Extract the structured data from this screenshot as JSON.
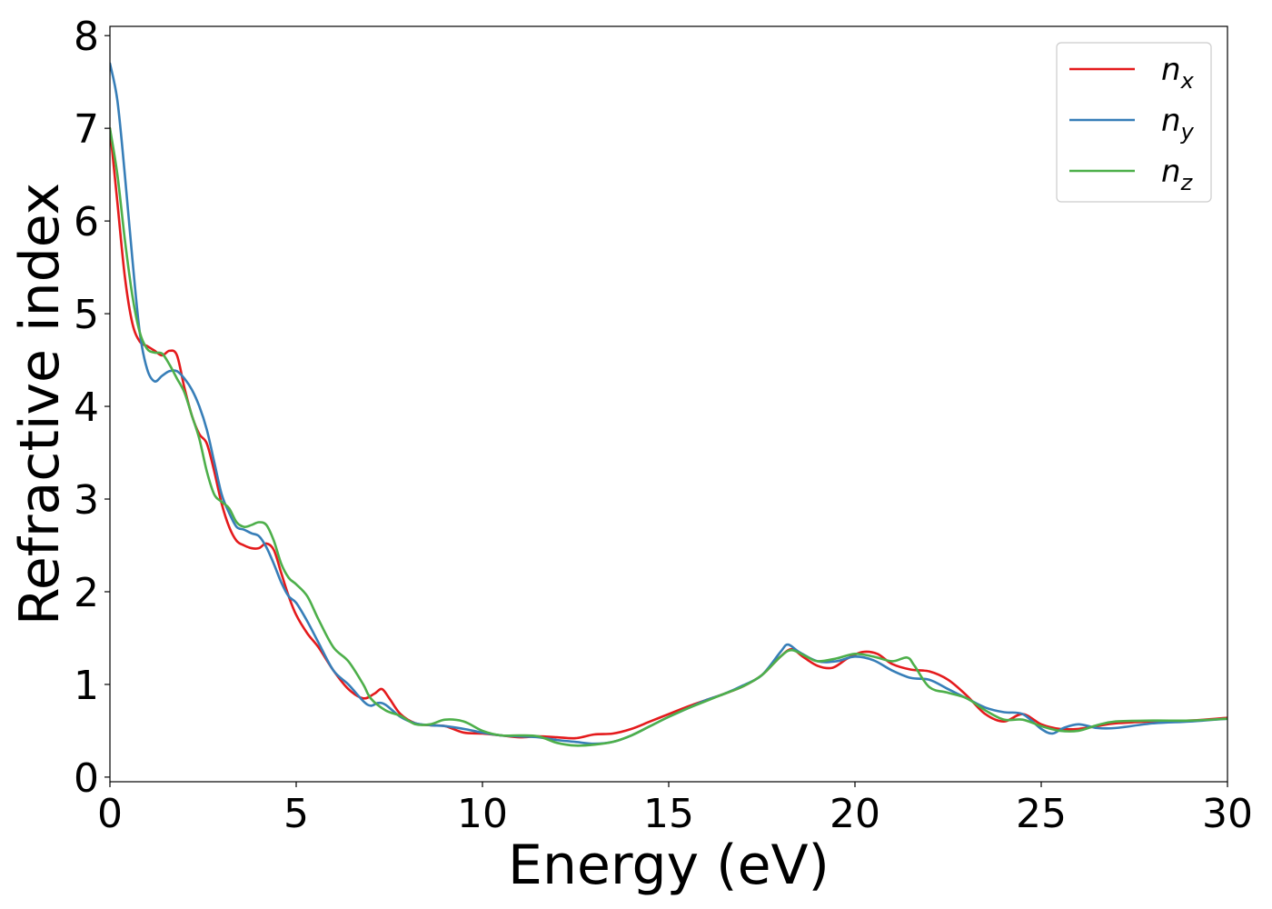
{
  "chart_data": {
    "type": "line",
    "title": "",
    "xlabel": "Energy (eV)",
    "ylabel": "Refractive index",
    "xlim": [
      0,
      30
    ],
    "ylim": [
      -0.05,
      8.1
    ],
    "xticks": [
      "0",
      "5",
      "10",
      "15",
      "20",
      "25",
      "30"
    ],
    "yticks": [
      "0",
      "1",
      "2",
      "3",
      "4",
      "5",
      "6",
      "7",
      "8"
    ],
    "grid": false,
    "legend_position": "top-right",
    "series": [
      {
        "name": "n",
        "subscript": "x",
        "color": "#e41a1c",
        "points": [
          [
            0,
            7.0
          ],
          [
            0.2,
            6.2
          ],
          [
            0.4,
            5.4
          ],
          [
            0.6,
            4.9
          ],
          [
            0.8,
            4.7
          ],
          [
            1.0,
            4.65
          ],
          [
            1.2,
            4.6
          ],
          [
            1.4,
            4.55
          ],
          [
            1.6,
            4.6
          ],
          [
            1.8,
            4.55
          ],
          [
            2.0,
            4.2
          ],
          [
            2.2,
            3.9
          ],
          [
            2.4,
            3.7
          ],
          [
            2.6,
            3.6
          ],
          [
            2.8,
            3.3
          ],
          [
            3.0,
            2.95
          ],
          [
            3.2,
            2.7
          ],
          [
            3.4,
            2.55
          ],
          [
            3.6,
            2.5
          ],
          [
            3.8,
            2.47
          ],
          [
            4.0,
            2.47
          ],
          [
            4.2,
            2.52
          ],
          [
            4.4,
            2.45
          ],
          [
            4.6,
            2.2
          ],
          [
            4.8,
            1.95
          ],
          [
            5.0,
            1.75
          ],
          [
            5.3,
            1.55
          ],
          [
            5.6,
            1.4
          ],
          [
            6.0,
            1.15
          ],
          [
            6.4,
            0.95
          ],
          [
            6.8,
            0.85
          ],
          [
            7.1,
            0.9
          ],
          [
            7.3,
            0.95
          ],
          [
            7.5,
            0.85
          ],
          [
            7.8,
            0.68
          ],
          [
            8.2,
            0.58
          ],
          [
            8.6,
            0.56
          ],
          [
            9.0,
            0.55
          ],
          [
            9.5,
            0.48
          ],
          [
            10.0,
            0.47
          ],
          [
            10.5,
            0.45
          ],
          [
            11.0,
            0.43
          ],
          [
            11.5,
            0.44
          ],
          [
            12.0,
            0.43
          ],
          [
            12.5,
            0.42
          ],
          [
            13.0,
            0.46
          ],
          [
            13.5,
            0.47
          ],
          [
            14.0,
            0.52
          ],
          [
            14.5,
            0.6
          ],
          [
            15.0,
            0.68
          ],
          [
            15.5,
            0.76
          ],
          [
            16.0,
            0.83
          ],
          [
            16.5,
            0.9
          ],
          [
            17.0,
            0.98
          ],
          [
            17.5,
            1.1
          ],
          [
            18.0,
            1.3
          ],
          [
            18.3,
            1.38
          ],
          [
            18.6,
            1.3
          ],
          [
            19.0,
            1.2
          ],
          [
            19.4,
            1.18
          ],
          [
            19.8,
            1.28
          ],
          [
            20.2,
            1.35
          ],
          [
            20.6,
            1.33
          ],
          [
            21.0,
            1.22
          ],
          [
            21.5,
            1.16
          ],
          [
            22.0,
            1.14
          ],
          [
            22.5,
            1.05
          ],
          [
            23.0,
            0.88
          ],
          [
            23.5,
            0.68
          ],
          [
            24.0,
            0.6
          ],
          [
            24.5,
            0.68
          ],
          [
            25.0,
            0.57
          ],
          [
            25.5,
            0.52
          ],
          [
            26.0,
            0.52
          ],
          [
            26.5,
            0.55
          ],
          [
            27.0,
            0.58
          ],
          [
            28.0,
            0.6
          ],
          [
            29.0,
            0.61
          ],
          [
            30.0,
            0.64
          ]
        ]
      },
      {
        "name": "n",
        "subscript": "y",
        "color": "#377eb8",
        "points": [
          [
            0,
            7.7
          ],
          [
            0.2,
            7.3
          ],
          [
            0.4,
            6.5
          ],
          [
            0.6,
            5.6
          ],
          [
            0.8,
            4.8
          ],
          [
            1.0,
            4.4
          ],
          [
            1.2,
            4.27
          ],
          [
            1.4,
            4.33
          ],
          [
            1.6,
            4.38
          ],
          [
            1.8,
            4.38
          ],
          [
            2.0,
            4.3
          ],
          [
            2.2,
            4.18
          ],
          [
            2.4,
            4.0
          ],
          [
            2.6,
            3.75
          ],
          [
            2.8,
            3.4
          ],
          [
            3.0,
            3.05
          ],
          [
            3.2,
            2.85
          ],
          [
            3.4,
            2.7
          ],
          [
            3.6,
            2.67
          ],
          [
            3.8,
            2.63
          ],
          [
            4.0,
            2.6
          ],
          [
            4.2,
            2.48
          ],
          [
            4.4,
            2.3
          ],
          [
            4.6,
            2.1
          ],
          [
            4.8,
            1.95
          ],
          [
            5.0,
            1.88
          ],
          [
            5.3,
            1.68
          ],
          [
            5.6,
            1.45
          ],
          [
            6.0,
            1.15
          ],
          [
            6.4,
            1.0
          ],
          [
            6.8,
            0.82
          ],
          [
            7.0,
            0.77
          ],
          [
            7.2,
            0.8
          ],
          [
            7.4,
            0.78
          ],
          [
            7.8,
            0.65
          ],
          [
            8.2,
            0.58
          ],
          [
            8.6,
            0.56
          ],
          [
            9.0,
            0.55
          ],
          [
            9.5,
            0.52
          ],
          [
            10.0,
            0.48
          ],
          [
            10.5,
            0.45
          ],
          [
            11.0,
            0.44
          ],
          [
            11.5,
            0.43
          ],
          [
            12.0,
            0.4
          ],
          [
            12.5,
            0.38
          ],
          [
            13.0,
            0.36
          ],
          [
            13.5,
            0.38
          ],
          [
            14.0,
            0.45
          ],
          [
            14.5,
            0.55
          ],
          [
            15.0,
            0.65
          ],
          [
            15.5,
            0.74
          ],
          [
            16.0,
            0.83
          ],
          [
            16.5,
            0.9
          ],
          [
            17.0,
            0.99
          ],
          [
            17.5,
            1.1
          ],
          [
            18.0,
            1.35
          ],
          [
            18.2,
            1.43
          ],
          [
            18.5,
            1.35
          ],
          [
            19.0,
            1.25
          ],
          [
            19.5,
            1.25
          ],
          [
            20.0,
            1.3
          ],
          [
            20.5,
            1.26
          ],
          [
            21.0,
            1.15
          ],
          [
            21.5,
            1.07
          ],
          [
            22.0,
            1.05
          ],
          [
            22.5,
            0.95
          ],
          [
            23.0,
            0.85
          ],
          [
            23.5,
            0.75
          ],
          [
            24.0,
            0.7
          ],
          [
            24.5,
            0.68
          ],
          [
            25.0,
            0.52
          ],
          [
            25.3,
            0.47
          ],
          [
            25.6,
            0.53
          ],
          [
            26.0,
            0.57
          ],
          [
            26.5,
            0.53
          ],
          [
            27.0,
            0.53
          ],
          [
            28.0,
            0.58
          ],
          [
            29.0,
            0.6
          ],
          [
            30.0,
            0.63
          ]
        ]
      },
      {
        "name": "n",
        "subscript": "z",
        "color": "#4daf4a",
        "points": [
          [
            0,
            7.0
          ],
          [
            0.2,
            6.5
          ],
          [
            0.4,
            5.8
          ],
          [
            0.6,
            5.2
          ],
          [
            0.8,
            4.8
          ],
          [
            1.0,
            4.62
          ],
          [
            1.2,
            4.58
          ],
          [
            1.4,
            4.57
          ],
          [
            1.6,
            4.45
          ],
          [
            1.8,
            4.3
          ],
          [
            2.0,
            4.15
          ],
          [
            2.2,
            3.9
          ],
          [
            2.4,
            3.65
          ],
          [
            2.6,
            3.3
          ],
          [
            2.8,
            3.05
          ],
          [
            3.0,
            2.97
          ],
          [
            3.2,
            2.9
          ],
          [
            3.4,
            2.75
          ],
          [
            3.6,
            2.7
          ],
          [
            3.8,
            2.72
          ],
          [
            4.0,
            2.75
          ],
          [
            4.2,
            2.72
          ],
          [
            4.4,
            2.55
          ],
          [
            4.6,
            2.3
          ],
          [
            4.8,
            2.15
          ],
          [
            5.0,
            2.08
          ],
          [
            5.3,
            1.95
          ],
          [
            5.6,
            1.7
          ],
          [
            6.0,
            1.4
          ],
          [
            6.4,
            1.25
          ],
          [
            6.8,
            1.0
          ],
          [
            7.0,
            0.85
          ],
          [
            7.4,
            0.72
          ],
          [
            7.8,
            0.66
          ],
          [
            8.2,
            0.57
          ],
          [
            8.6,
            0.57
          ],
          [
            9.0,
            0.62
          ],
          [
            9.5,
            0.6
          ],
          [
            10.0,
            0.5
          ],
          [
            10.5,
            0.45
          ],
          [
            11.0,
            0.45
          ],
          [
            11.5,
            0.44
          ],
          [
            12.0,
            0.37
          ],
          [
            12.5,
            0.34
          ],
          [
            13.0,
            0.35
          ],
          [
            13.5,
            0.38
          ],
          [
            14.0,
            0.45
          ],
          [
            14.5,
            0.55
          ],
          [
            15.0,
            0.65
          ],
          [
            15.5,
            0.74
          ],
          [
            16.0,
            0.82
          ],
          [
            16.5,
            0.9
          ],
          [
            17.0,
            0.98
          ],
          [
            17.5,
            1.1
          ],
          [
            18.0,
            1.3
          ],
          [
            18.3,
            1.37
          ],
          [
            18.7,
            1.3
          ],
          [
            19.0,
            1.25
          ],
          [
            19.5,
            1.28
          ],
          [
            20.0,
            1.33
          ],
          [
            20.5,
            1.3
          ],
          [
            21.0,
            1.25
          ],
          [
            21.4,
            1.29
          ],
          [
            21.6,
            1.2
          ],
          [
            22.0,
            0.97
          ],
          [
            22.5,
            0.91
          ],
          [
            23.0,
            0.85
          ],
          [
            23.5,
            0.72
          ],
          [
            24.0,
            0.62
          ],
          [
            24.5,
            0.62
          ],
          [
            25.0,
            0.55
          ],
          [
            25.5,
            0.5
          ],
          [
            26.0,
            0.5
          ],
          [
            26.5,
            0.56
          ],
          [
            27.0,
            0.6
          ],
          [
            28.0,
            0.61
          ],
          [
            29.0,
            0.61
          ],
          [
            30.0,
            0.63
          ]
        ]
      }
    ]
  }
}
